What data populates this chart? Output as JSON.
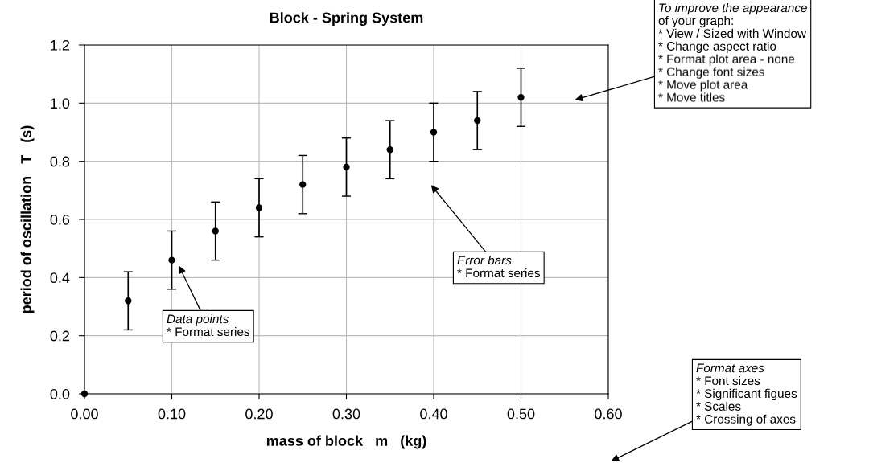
{
  "chart_data": {
    "type": "scatter",
    "title": "Block - Spring System",
    "xlabel": "mass of block   m   (kg)",
    "ylabel": "period of oscillation   T   (s)",
    "x": [
      0.0,
      0.05,
      0.1,
      0.15,
      0.2,
      0.25,
      0.3,
      0.35,
      0.4,
      0.45,
      0.5
    ],
    "series": [
      {
        "color": "#000000",
        "values": [
          0.0,
          0.32,
          0.46,
          0.56,
          0.64,
          0.72,
          0.78,
          0.84,
          0.9,
          0.94,
          1.02
        ],
        "errors": [
          null,
          0.1,
          0.1,
          0.1,
          0.1,
          0.1,
          0.1,
          0.1,
          0.1,
          0.1,
          0.1
        ]
      }
    ],
    "xlim": [
      0,
      0.6
    ],
    "xticks": [
      {
        "value": 0,
        "label": "0.00"
      },
      {
        "value": 0.1,
        "label": "0.10"
      },
      {
        "value": 0.2,
        "label": "0.20"
      },
      {
        "value": 0.3,
        "label": "0.30"
      },
      {
        "value": 0.4,
        "label": "0.40"
      },
      {
        "value": 0.5,
        "label": "0.50"
      },
      {
        "value": 0.6,
        "label": "0.60"
      }
    ],
    "ylim": [
      0,
      1.2
    ],
    "yticks": [
      {
        "value": 0,
        "label": "0.0"
      },
      {
        "value": 0.2,
        "label": "0.2"
      },
      {
        "value": 0.4,
        "label": "0.4"
      },
      {
        "value": 0.6,
        "label": "0.6"
      },
      {
        "value": 0.8,
        "label": "0.8"
      },
      {
        "value": 1.0,
        "label": "1.0"
      },
      {
        "value": 1.2,
        "label": "1.2"
      }
    ],
    "grid": true,
    "marker": "circle",
    "annotations": [
      "Data points\n* Format series",
      "Error bars\n* Format series",
      "To improve the appearance\nof your graph:\n* View / Sized with Window\n* Change aspect ratio\n* Format plot area - none\n* Change font sizes\n* Move plot area\n* Move titles",
      "Format axes\n* Font sizes\n* Significant figues\n* Scales\n* Crossing of axes"
    ]
  }
}
